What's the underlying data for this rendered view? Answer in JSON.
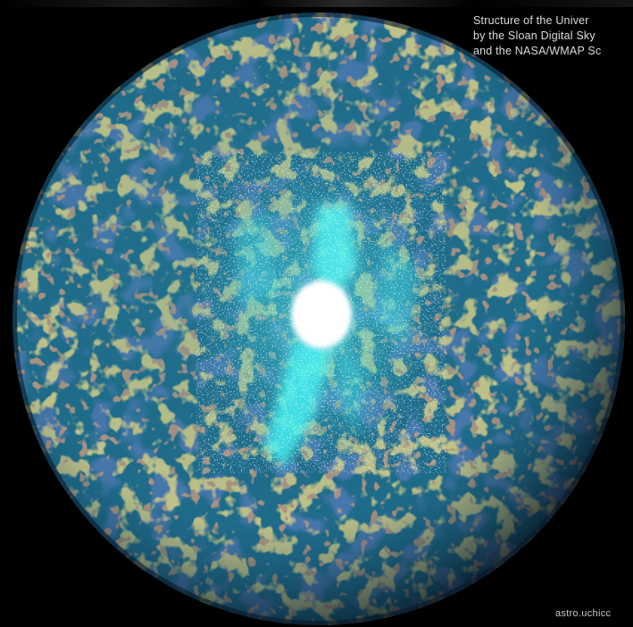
{
  "caption": {
    "line1": "Structure of the Univer",
    "line2": "by the Sloan Digital Sky",
    "line3": "and the NASA/WMAP Sc"
  },
  "credit": "astro.uchicc",
  "colors": {
    "background": "#000000",
    "sphere_base": "#1f6d8c",
    "sphere_dark": "#173a6e",
    "sphere_warm": "#b9a84a",
    "sphere_hot": "#8a5a3a",
    "galaxy_glow": "#33f0f0",
    "galaxy_core": "#ffffff"
  }
}
